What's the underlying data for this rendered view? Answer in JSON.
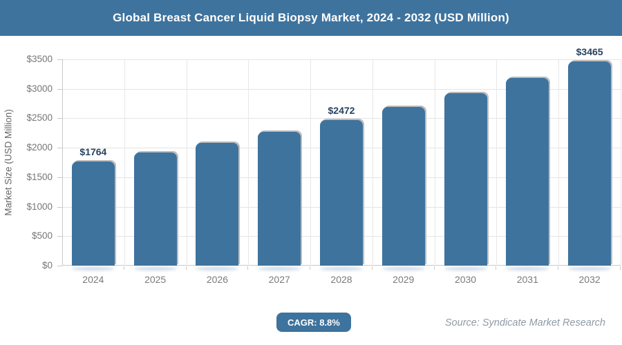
{
  "header": {
    "title": "Global Breast Cancer Liquid Biopsy Market, 2024 - 2032 (USD Million)",
    "bg_color": "#3e739e",
    "text_color": "#ffffff"
  },
  "chart_data": {
    "type": "bar",
    "title": "Global Breast Cancer Liquid Biopsy Market, 2024 - 2032 (USD Million)",
    "categories": [
      "2024",
      "2025",
      "2026",
      "2027",
      "2028",
      "2029",
      "2030",
      "2031",
      "2032"
    ],
    "values": [
      1764,
      1919,
      2088,
      2272,
      2472,
      2690,
      2926,
      3184,
      3465
    ],
    "data_labels": [
      "$1764",
      "",
      "",
      "",
      "$2472",
      "",
      "",
      "",
      "$3465"
    ],
    "xlabel": "",
    "ylabel": "Market Size (USD Million)",
    "ylim": [
      0,
      3500
    ],
    "ytick_step": 500,
    "ytick_labels": [
      "$0",
      "$500",
      "$1000",
      "$1500",
      "$2000",
      "$2500",
      "$3000",
      "$3500"
    ],
    "grid": true,
    "legend": "none",
    "bar_color": "#3e739e",
    "data_label_color": "#27425f",
    "axis_text_color": "#767676"
  },
  "footer": {
    "cagr_label": "CAGR: 8.8%",
    "source": "Source: Syndicate Market Research"
  }
}
